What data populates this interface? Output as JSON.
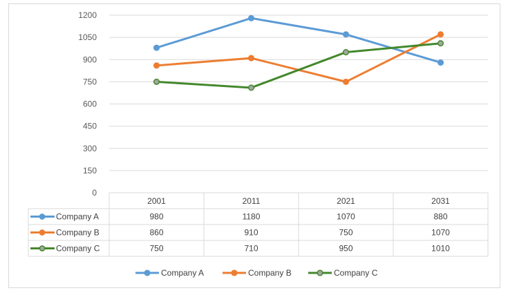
{
  "chart_data": {
    "type": "line",
    "categories": [
      "2001",
      "2011",
      "2021",
      "2031"
    ],
    "yticks": [
      "0",
      "150",
      "300",
      "450",
      "600",
      "750",
      "900",
      "1050",
      "1200"
    ],
    "ylim": [
      0,
      1200
    ],
    "grid": true,
    "legend": "bottom",
    "data_table": true,
    "series": [
      {
        "name": "Company A",
        "color": "#5b9bd5",
        "marker": "#5b9bd5",
        "values": [
          980,
          1180,
          1070,
          880
        ],
        "labels": [
          "980",
          "1180",
          "1070",
          "880"
        ]
      },
      {
        "name": "Company B",
        "color": "#ed7d31",
        "marker": "#ed7d31",
        "values": [
          860,
          910,
          750,
          1070
        ],
        "labels": [
          "860",
          "910",
          "750",
          "1070"
        ]
      },
      {
        "name": "Company C",
        "color": "#43882b",
        "marker": "#a5a5a5",
        "values": [
          750,
          710,
          950,
          1010
        ],
        "labels": [
          "750",
          "710",
          "950",
          "1010"
        ]
      }
    ]
  }
}
